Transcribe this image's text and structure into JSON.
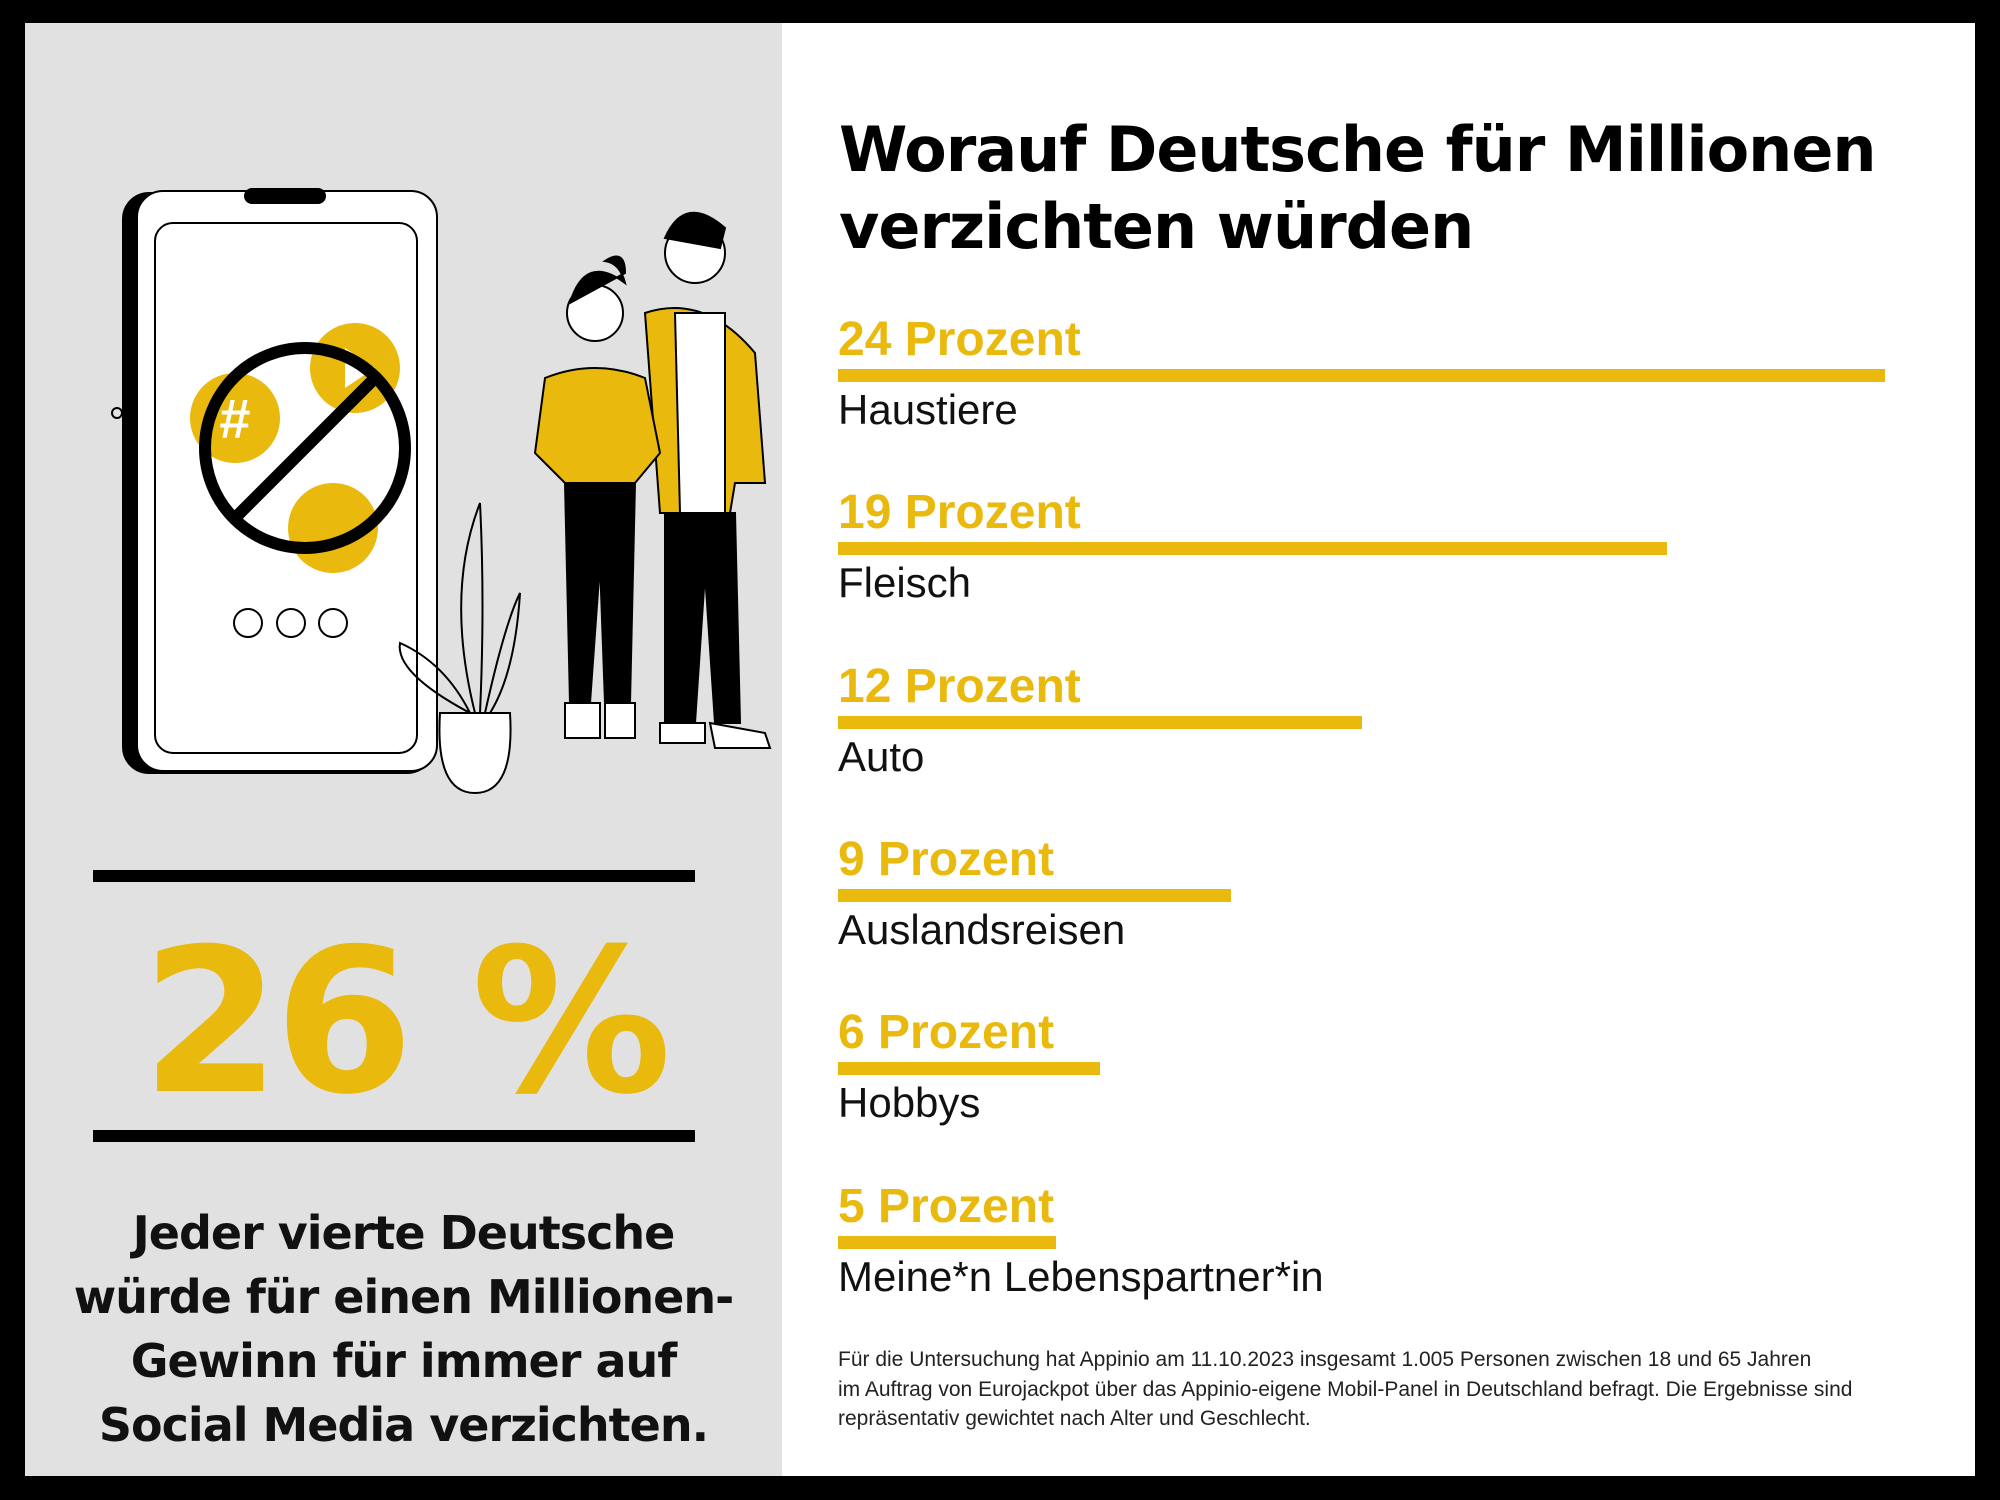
{
  "colors": {
    "accent": "#E9B90E",
    "panel": "#E1E1E1",
    "text": "#000000"
  },
  "left": {
    "illustration": "phone-with-banned-social-media-icons-and-couple",
    "big_number": "26 %",
    "subtext_lines": [
      "Jeder vierte Deutsche",
      "würde für einen Millionen-",
      "Gewinn für immer auf",
      "Social Media verzichten."
    ]
  },
  "chart_data": {
    "type": "bar",
    "orientation": "horizontal",
    "title": "Worauf Deutsche für Millionen verzichten würden",
    "title_lines": [
      "Worauf Deutsche für Millionen",
      "verzichten würden"
    ],
    "categories": [
      "Haustiere",
      "Fleisch",
      "Auto",
      "Auslandsreisen",
      "Hobbys",
      "Meine*n Lebenspartner*in"
    ],
    "values": [
      24,
      19,
      12,
      9,
      6,
      5
    ],
    "data_labels": [
      "24 Prozent",
      "19 Prozent",
      "12 Prozent",
      "9 Prozent",
      "6 Prozent",
      "5 Prozent"
    ],
    "unit": "Prozent",
    "xlim": [
      0,
      24
    ],
    "grid": false,
    "legend": "none",
    "bar_color": "#E9B90E"
  },
  "footnote_lines": [
    "Für die Untersuchung hat Appinio am 11.10.2023 insgesamt 1.005 Personen zwischen 18 und 65 Jahren",
    "im Auftrag von Eurojackpot über das Appinio-eigene Mobil-Panel in Deutschland befragt. Die Ergebnisse sind",
    "repräsentativ gewichtet nach Alter und Geschlecht."
  ]
}
